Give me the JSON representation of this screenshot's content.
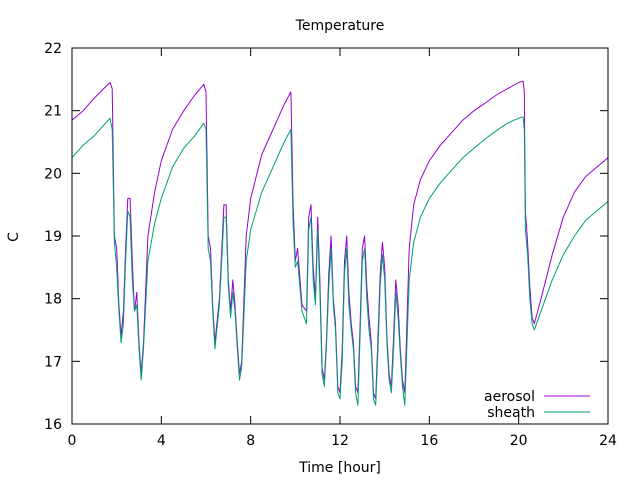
{
  "chart_data": {
    "type": "line",
    "title": "Temperature",
    "xlabel": "Time [hour]",
    "ylabel": "C",
    "xlim": [
      0,
      24
    ],
    "ylim": [
      16,
      22
    ],
    "xticks": [
      0,
      4,
      8,
      12,
      16,
      20,
      24
    ],
    "yticks": [
      16,
      17,
      18,
      19,
      20,
      21,
      22
    ],
    "legend_position": "bottom-right",
    "series": [
      {
        "name": "aerosol",
        "color": "#9400d3",
        "points": [
          [
            0.0,
            20.85
          ],
          [
            0.5,
            21.0
          ],
          [
            1.0,
            21.2
          ],
          [
            1.5,
            21.38
          ],
          [
            1.7,
            21.45
          ],
          [
            1.8,
            21.35
          ],
          [
            1.9,
            19.0
          ],
          [
            2.0,
            18.8
          ],
          [
            2.1,
            17.9
          ],
          [
            2.2,
            17.4
          ],
          [
            2.3,
            17.8
          ],
          [
            2.4,
            18.8
          ],
          [
            2.5,
            19.6
          ],
          [
            2.6,
            19.6
          ],
          [
            2.7,
            18.6
          ],
          [
            2.8,
            17.8
          ],
          [
            2.9,
            18.1
          ],
          [
            3.0,
            17.3
          ],
          [
            3.1,
            16.8
          ],
          [
            3.2,
            17.3
          ],
          [
            3.4,
            19.0
          ],
          [
            3.7,
            19.7
          ],
          [
            4.0,
            20.2
          ],
          [
            4.5,
            20.7
          ],
          [
            5.0,
            21.0
          ],
          [
            5.5,
            21.25
          ],
          [
            5.9,
            21.42
          ],
          [
            6.0,
            21.3
          ],
          [
            6.1,
            19.0
          ],
          [
            6.2,
            18.8
          ],
          [
            6.3,
            17.9
          ],
          [
            6.4,
            17.3
          ],
          [
            6.6,
            18.0
          ],
          [
            6.8,
            19.5
          ],
          [
            6.9,
            19.5
          ],
          [
            7.0,
            18.3
          ],
          [
            7.1,
            17.8
          ],
          [
            7.2,
            18.3
          ],
          [
            7.3,
            17.9
          ],
          [
            7.4,
            17.3
          ],
          [
            7.5,
            16.8
          ],
          [
            7.6,
            17.0
          ],
          [
            7.8,
            19.0
          ],
          [
            8.0,
            19.6
          ],
          [
            8.5,
            20.3
          ],
          [
            9.0,
            20.7
          ],
          [
            9.5,
            21.1
          ],
          [
            9.8,
            21.3
          ],
          [
            9.9,
            19.5
          ],
          [
            10.0,
            18.6
          ],
          [
            10.1,
            18.8
          ],
          [
            10.3,
            17.9
          ],
          [
            10.5,
            17.8
          ],
          [
            10.6,
            19.3
          ],
          [
            10.7,
            19.5
          ],
          [
            10.8,
            18.5
          ],
          [
            10.9,
            18.0
          ],
          [
            11.0,
            19.3
          ],
          [
            11.1,
            18.3
          ],
          [
            11.2,
            16.9
          ],
          [
            11.3,
            16.7
          ],
          [
            11.4,
            17.4
          ],
          [
            11.5,
            18.4
          ],
          [
            11.6,
            19.0
          ],
          [
            11.7,
            18.0
          ],
          [
            11.8,
            17.6
          ],
          [
            11.9,
            16.6
          ],
          [
            12.0,
            16.5
          ],
          [
            12.1,
            17.2
          ],
          [
            12.2,
            18.6
          ],
          [
            12.3,
            19.0
          ],
          [
            12.4,
            18.1
          ],
          [
            12.5,
            17.6
          ],
          [
            12.6,
            17.3
          ],
          [
            12.7,
            16.6
          ],
          [
            12.8,
            16.5
          ],
          [
            12.9,
            17.6
          ],
          [
            13.0,
            18.8
          ],
          [
            13.1,
            19.0
          ],
          [
            13.2,
            18.2
          ],
          [
            13.3,
            17.7
          ],
          [
            13.4,
            17.3
          ],
          [
            13.5,
            16.5
          ],
          [
            13.6,
            16.4
          ],
          [
            13.7,
            17.4
          ],
          [
            13.8,
            18.4
          ],
          [
            13.9,
            18.9
          ],
          [
            14.0,
            18.5
          ],
          [
            14.1,
            17.4
          ],
          [
            14.2,
            16.8
          ],
          [
            14.3,
            16.6
          ],
          [
            14.4,
            17.4
          ],
          [
            14.5,
            18.3
          ],
          [
            14.6,
            17.9
          ],
          [
            14.7,
            17.2
          ],
          [
            14.8,
            16.7
          ],
          [
            14.9,
            16.5
          ],
          [
            15.1,
            18.8
          ],
          [
            15.3,
            19.5
          ],
          [
            15.6,
            19.9
          ],
          [
            16.0,
            20.2
          ],
          [
            16.5,
            20.45
          ],
          [
            17.0,
            20.65
          ],
          [
            17.5,
            20.85
          ],
          [
            18.0,
            21.0
          ],
          [
            18.5,
            21.12
          ],
          [
            19.0,
            21.25
          ],
          [
            19.5,
            21.35
          ],
          [
            20.0,
            21.45
          ],
          [
            20.2,
            21.47
          ],
          [
            20.25,
            21.3
          ],
          [
            20.3,
            19.4
          ],
          [
            20.4,
            18.9
          ],
          [
            20.5,
            18.2
          ],
          [
            20.6,
            17.7
          ],
          [
            20.7,
            17.6
          ],
          [
            21.0,
            18.0
          ],
          [
            21.5,
            18.7
          ],
          [
            22.0,
            19.3
          ],
          [
            22.5,
            19.7
          ],
          [
            23.0,
            19.95
          ],
          [
            23.5,
            20.1
          ],
          [
            24.0,
            20.25
          ]
        ]
      },
      {
        "name": "sheath",
        "color": "#009e73",
        "points": [
          [
            0.0,
            20.25
          ],
          [
            0.5,
            20.45
          ],
          [
            1.0,
            20.6
          ],
          [
            1.5,
            20.8
          ],
          [
            1.7,
            20.88
          ],
          [
            1.8,
            20.7
          ],
          [
            1.9,
            18.9
          ],
          [
            2.0,
            18.5
          ],
          [
            2.1,
            17.8
          ],
          [
            2.2,
            17.3
          ],
          [
            2.3,
            17.6
          ],
          [
            2.4,
            18.6
          ],
          [
            2.5,
            19.4
          ],
          [
            2.6,
            19.3
          ],
          [
            2.7,
            18.3
          ],
          [
            2.8,
            17.8
          ],
          [
            2.9,
            17.9
          ],
          [
            3.0,
            17.2
          ],
          [
            3.1,
            16.7
          ],
          [
            3.2,
            17.2
          ],
          [
            3.4,
            18.6
          ],
          [
            3.7,
            19.2
          ],
          [
            4.0,
            19.6
          ],
          [
            4.5,
            20.1
          ],
          [
            5.0,
            20.4
          ],
          [
            5.5,
            20.6
          ],
          [
            5.9,
            20.8
          ],
          [
            6.0,
            20.7
          ],
          [
            6.1,
            18.8
          ],
          [
            6.2,
            18.6
          ],
          [
            6.3,
            17.8
          ],
          [
            6.4,
            17.2
          ],
          [
            6.6,
            17.9
          ],
          [
            6.8,
            19.3
          ],
          [
            6.9,
            19.3
          ],
          [
            7.0,
            18.2
          ],
          [
            7.1,
            17.7
          ],
          [
            7.2,
            18.1
          ],
          [
            7.3,
            17.8
          ],
          [
            7.4,
            17.2
          ],
          [
            7.5,
            16.7
          ],
          [
            7.6,
            16.9
          ],
          [
            7.8,
            18.6
          ],
          [
            8.0,
            19.1
          ],
          [
            8.5,
            19.7
          ],
          [
            9.0,
            20.1
          ],
          [
            9.5,
            20.5
          ],
          [
            9.8,
            20.7
          ],
          [
            9.9,
            19.2
          ],
          [
            10.0,
            18.5
          ],
          [
            10.1,
            18.6
          ],
          [
            10.3,
            17.8
          ],
          [
            10.5,
            17.6
          ],
          [
            10.6,
            19.1
          ],
          [
            10.7,
            19.3
          ],
          [
            10.8,
            18.3
          ],
          [
            10.9,
            17.9
          ],
          [
            11.0,
            19.1
          ],
          [
            11.1,
            18.1
          ],
          [
            11.2,
            16.8
          ],
          [
            11.3,
            16.6
          ],
          [
            11.4,
            17.3
          ],
          [
            11.5,
            18.2
          ],
          [
            11.6,
            18.8
          ],
          [
            11.7,
            17.9
          ],
          [
            11.8,
            17.5
          ],
          [
            11.9,
            16.5
          ],
          [
            12.0,
            16.4
          ],
          [
            12.1,
            17.0
          ],
          [
            12.2,
            18.4
          ],
          [
            12.3,
            18.8
          ],
          [
            12.4,
            17.9
          ],
          [
            12.5,
            17.5
          ],
          [
            12.6,
            17.2
          ],
          [
            12.7,
            16.5
          ],
          [
            12.8,
            16.3
          ],
          [
            12.9,
            17.4
          ],
          [
            13.0,
            18.6
          ],
          [
            13.1,
            18.8
          ],
          [
            13.2,
            18.0
          ],
          [
            13.3,
            17.5
          ],
          [
            13.4,
            17.2
          ],
          [
            13.5,
            16.4
          ],
          [
            13.6,
            16.3
          ],
          [
            13.7,
            17.2
          ],
          [
            13.8,
            18.2
          ],
          [
            13.9,
            18.7
          ],
          [
            14.0,
            18.3
          ],
          [
            14.1,
            17.3
          ],
          [
            14.2,
            16.7
          ],
          [
            14.3,
            16.5
          ],
          [
            14.4,
            17.2
          ],
          [
            14.5,
            18.1
          ],
          [
            14.6,
            17.7
          ],
          [
            14.7,
            17.1
          ],
          [
            14.8,
            16.6
          ],
          [
            14.9,
            16.3
          ],
          [
            15.1,
            18.3
          ],
          [
            15.3,
            18.9
          ],
          [
            15.6,
            19.3
          ],
          [
            16.0,
            19.6
          ],
          [
            16.5,
            19.85
          ],
          [
            17.0,
            20.05
          ],
          [
            17.5,
            20.25
          ],
          [
            18.0,
            20.4
          ],
          [
            18.5,
            20.55
          ],
          [
            19.0,
            20.68
          ],
          [
            19.5,
            20.8
          ],
          [
            20.0,
            20.88
          ],
          [
            20.2,
            20.9
          ],
          [
            20.25,
            20.7
          ],
          [
            20.3,
            19.1
          ],
          [
            20.4,
            18.7
          ],
          [
            20.5,
            18.0
          ],
          [
            20.6,
            17.6
          ],
          [
            20.7,
            17.5
          ],
          [
            21.0,
            17.8
          ],
          [
            21.5,
            18.3
          ],
          [
            22.0,
            18.7
          ],
          [
            22.5,
            19.0
          ],
          [
            23.0,
            19.25
          ],
          [
            23.5,
            19.4
          ],
          [
            24.0,
            19.55
          ]
        ]
      }
    ]
  }
}
